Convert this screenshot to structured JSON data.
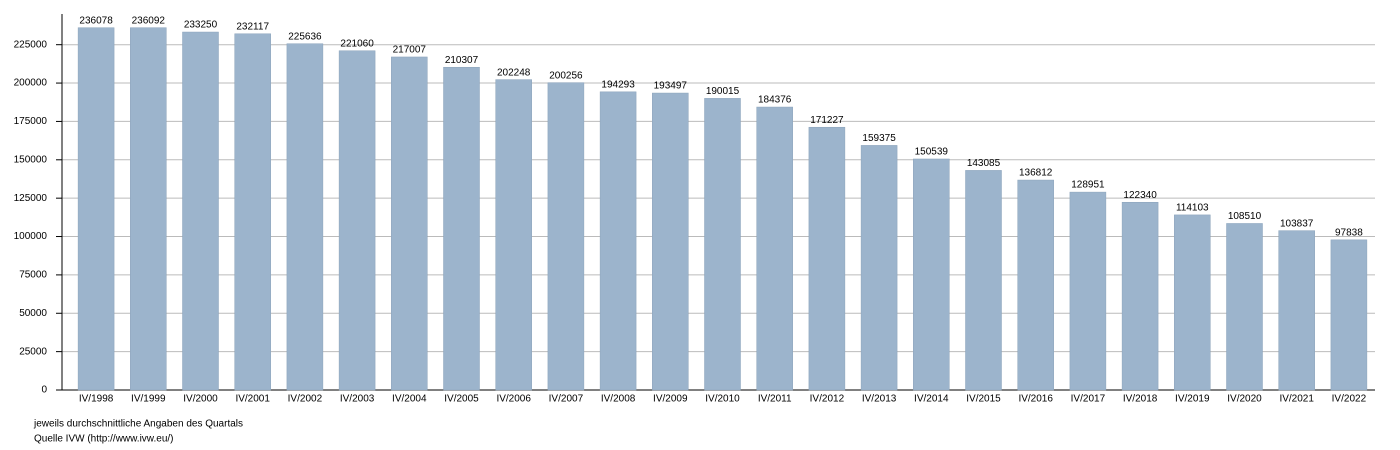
{
  "chart_data": {
    "type": "bar",
    "categories": [
      "IV/1998",
      "IV/1999",
      "IV/2000",
      "IV/2001",
      "IV/2002",
      "IV/2003",
      "IV/2004",
      "IV/2005",
      "IV/2006",
      "IV/2007",
      "IV/2008",
      "IV/2009",
      "IV/2010",
      "IV/2011",
      "IV/2012",
      "IV/2013",
      "IV/2014",
      "IV/2015",
      "IV/2016",
      "IV/2017",
      "IV/2018",
      "IV/2019",
      "IV/2020",
      "IV/2021",
      "IV/2022"
    ],
    "values": [
      236078,
      236092,
      233250,
      232117,
      225636,
      221060,
      217007,
      210307,
      202248,
      200256,
      194293,
      193497,
      190015,
      184376,
      171227,
      159375,
      150539,
      143085,
      136812,
      128951,
      122340,
      114103,
      108510,
      103837,
      97838
    ],
    "color": "#9cb4cc",
    "ylim": [
      0,
      245000
    ],
    "yticks": [
      0,
      25000,
      50000,
      75000,
      100000,
      125000,
      150000,
      175000,
      200000,
      225000
    ],
    "grid": true,
    "notes": [
      "jeweils durchschnittliche Angaben des Quartals",
      "Quelle IVW (http://www.ivw.eu/)"
    ]
  }
}
